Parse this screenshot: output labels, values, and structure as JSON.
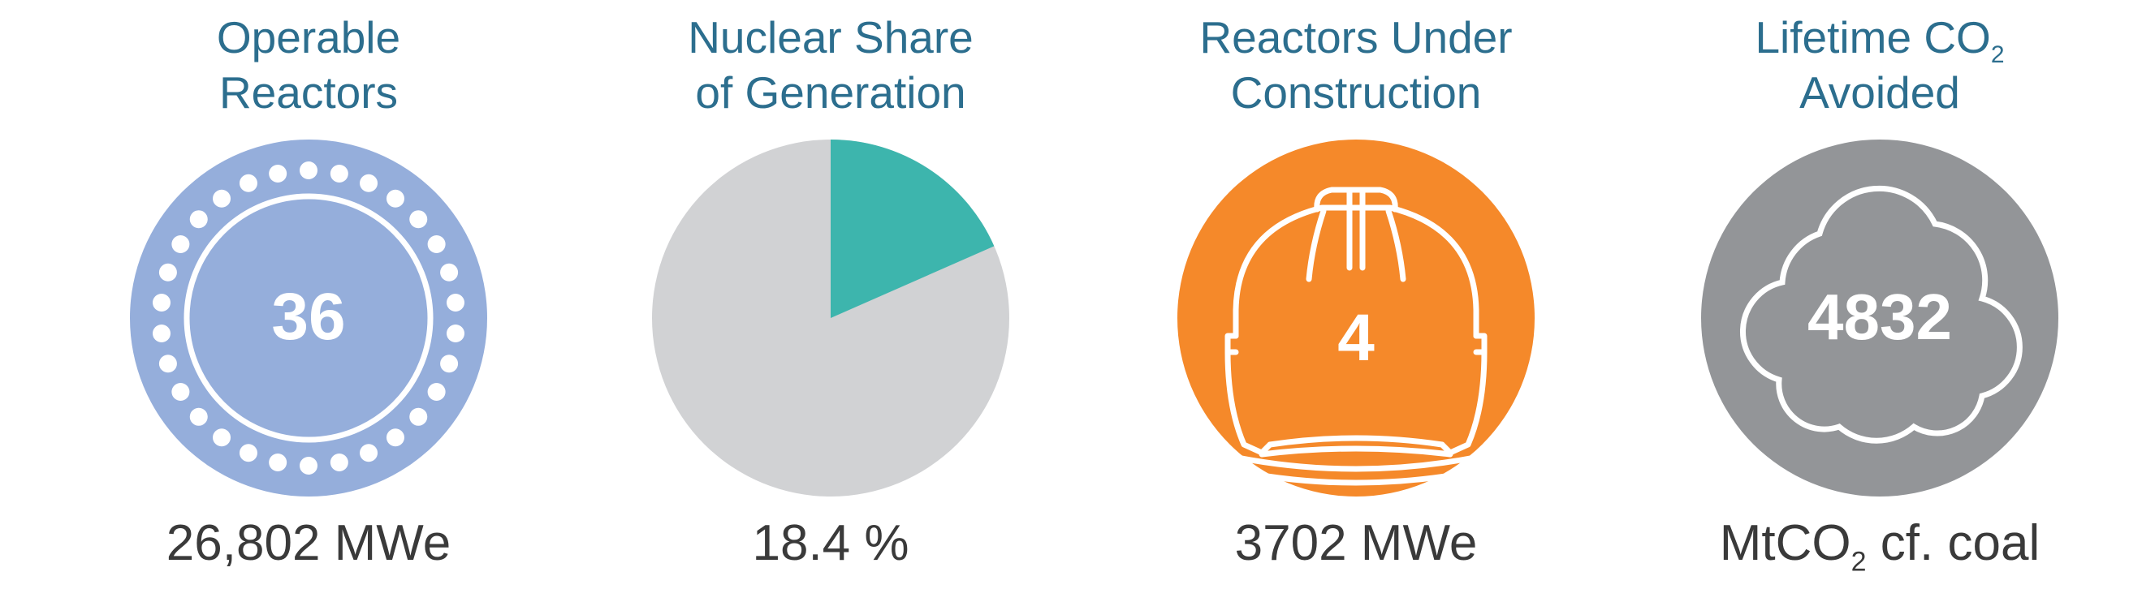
{
  "panels": {
    "reactors": {
      "title_line1": "Operable",
      "title_line2": "Reactors",
      "value": "36",
      "caption": "26,802 MWe",
      "icon": "reactor-core-icon",
      "color": "#95aedb"
    },
    "share": {
      "title_line1": "Nuclear Share",
      "title_line2": "of Generation",
      "share_percent": 18.4,
      "caption": "18.4 %",
      "color_nuclear": "#3db5ad",
      "color_other": "#d1d2d4"
    },
    "construction": {
      "title_line1": "Reactors Under",
      "title_line2": "Construction",
      "value": "4",
      "caption": "3702 MWe",
      "icon": "hard-hat-icon",
      "color": "#f5892a"
    },
    "co2": {
      "title_main": "Lifetime CO",
      "title_sub": "2",
      "title_line2": "Avoided",
      "value": "4832",
      "caption_pre": "MtCO",
      "caption_sub": "2",
      "caption_post": " cf. coal",
      "icon": "cloud-icon",
      "color": "#939598"
    }
  },
  "colors": {
    "title": "#2c6e8e",
    "caption": "#3a3a3a"
  }
}
